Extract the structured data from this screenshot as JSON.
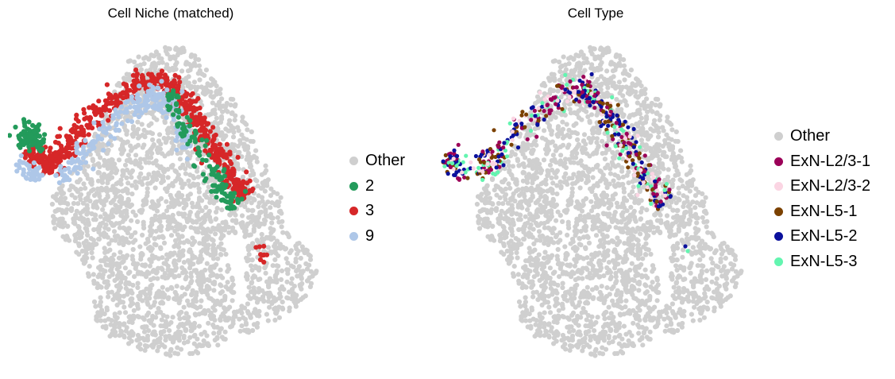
{
  "chart_data": [
    {
      "type": "scatter",
      "title": "Cell Niche (matched)",
      "legend_position": "right",
      "grid": false,
      "axes": false,
      "series": [
        {
          "name": "Other",
          "color": "#cfcfcf"
        },
        {
          "name": "2",
          "color": "#239b5b"
        },
        {
          "name": "3",
          "color": "#d62728"
        },
        {
          "name": "9",
          "color": "#aec7e8"
        }
      ]
    },
    {
      "type": "scatter",
      "title": "Cell Type",
      "legend_position": "right",
      "grid": false,
      "axes": false,
      "series": [
        {
          "name": "Other",
          "color": "#cfcfcf"
        },
        {
          "name": "ExN-L2/3-1",
          "color": "#9b0058"
        },
        {
          "name": "ExN-L2/3-2",
          "color": "#fbd5e3"
        },
        {
          "name": "ExN-L5-1",
          "color": "#7b4100"
        },
        {
          "name": "ExN-L5-2",
          "color": "#0a109c"
        },
        {
          "name": "ExN-L5-3",
          "color": "#63f5b0"
        }
      ]
    }
  ]
}
